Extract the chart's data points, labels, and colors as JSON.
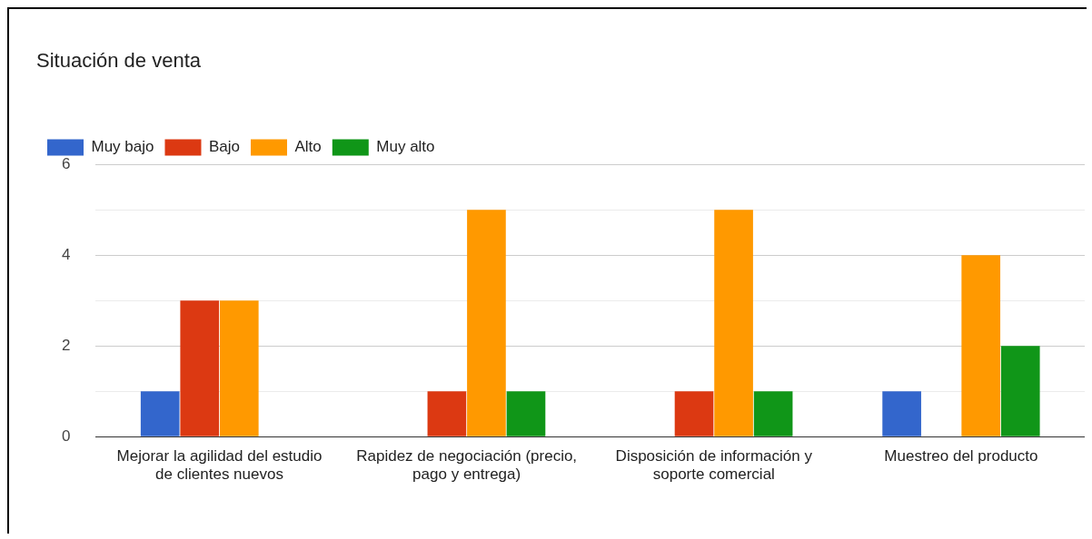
{
  "chart_data": {
    "type": "bar",
    "title": "Situación de venta",
    "categories": [
      "Mejorar la agilidad del estudio de clientes nuevos",
      "Rapidez de negociación (precio, pago y entrega)",
      "Disposición de información y soporte comercial",
      "Muestreo del producto"
    ],
    "series": [
      {
        "name": "Muy bajo",
        "color": "#3366cc",
        "values": [
          1,
          0,
          0,
          1
        ]
      },
      {
        "name": "Bajo",
        "color": "#dc3912",
        "values": [
          3,
          1,
          1,
          0
        ]
      },
      {
        "name": "Alto",
        "color": "#ff9900",
        "values": [
          3,
          5,
          5,
          4
        ]
      },
      {
        "name": "Muy alto",
        "color": "#109618",
        "values": [
          0,
          1,
          1,
          2
        ]
      }
    ],
    "ylim": [
      0,
      6
    ],
    "yticks": [
      0,
      {
        "value": 1,
        "label": null
      },
      2,
      {
        "value": 3,
        "label": null
      },
      4,
      {
        "value": 5,
        "label": null
      },
      6
    ],
    "grid": "y",
    "legend": "top left"
  }
}
